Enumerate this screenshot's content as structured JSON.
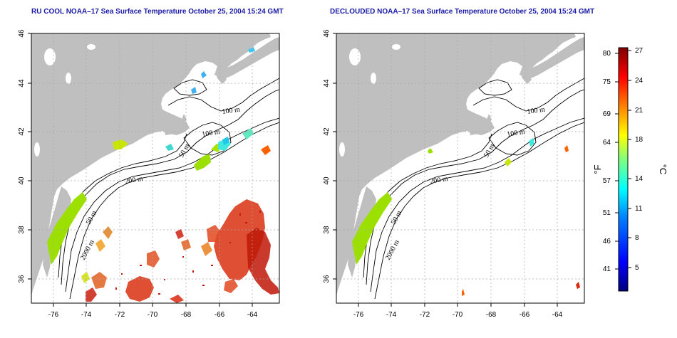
{
  "panels": [
    {
      "title": "RU COOL NOAA–17 Sea Surface Temperature October 25, 2004 15:24 GMT",
      "x_ticks": [
        "-76",
        "-74",
        "-72",
        "-70",
        "-68",
        "-66",
        "-64"
      ],
      "y_ticks": [
        "46",
        "44",
        "42",
        "40",
        "38",
        "36"
      ],
      "contour_labels": [
        "100 m",
        "100 m",
        "50 m",
        "200 m",
        "50 m",
        "2000 m"
      ]
    },
    {
      "title": "DECLOUDED NOAA–17 Sea Surface Temperature October 25, 2004 15:24 GMT",
      "x_ticks": [
        "-76",
        "-74",
        "-72",
        "-70",
        "-68",
        "-66",
        "-64"
      ],
      "y_ticks": [
        "46",
        "44",
        "42",
        "40",
        "38",
        "36"
      ],
      "contour_labels": [
        "100 m",
        "100 m",
        "50 m",
        "200 m",
        "50 m",
        "2000 m"
      ]
    }
  ],
  "colorbar": {
    "fahrenheit_ticks": [
      "80",
      "75",
      "69",
      "64",
      "57",
      "51",
      "46",
      "41"
    ],
    "celsius_ticks": [
      "27",
      "24",
      "21",
      "18",
      "14",
      "11",
      "8",
      "5"
    ],
    "fahrenheit_label": "°F",
    "celsius_label": "°C",
    "colors": [
      "#00007f",
      "#0000ff",
      "#007fff",
      "#00ffff",
      "#7fff7f",
      "#ffff00",
      "#ff7f00",
      "#ff0000",
      "#7f0000"
    ]
  },
  "map": {
    "lon_range": [
      -77,
      -63
    ],
    "lat_range": [
      35,
      46
    ],
    "land_color": "#bfbfbf",
    "ocean_color": "#ffffff"
  }
}
